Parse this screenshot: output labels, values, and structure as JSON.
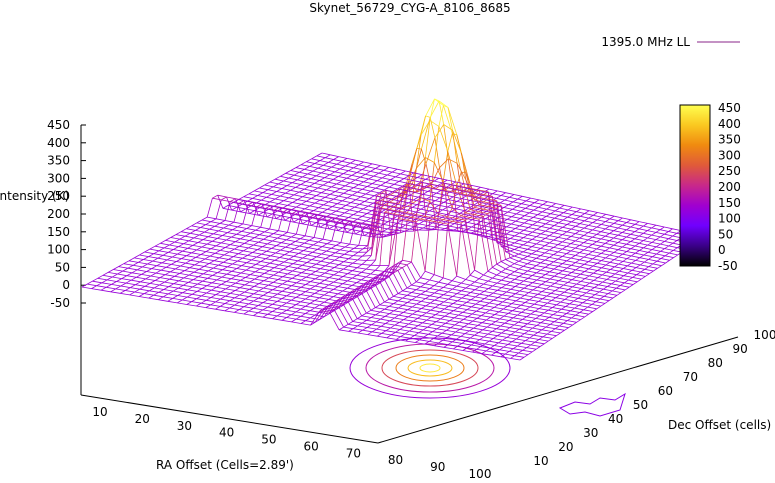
{
  "chart_data": {
    "type": "surface",
    "title": "Skynet_56729_CYG-A_8106_8685",
    "xlabel": "RA Offset (Cells=2.89')",
    "ylabel": "Dec Offset (cells)",
    "zlabel": "Intensity (K)",
    "legend": {
      "label": "1395.0 MHz LL",
      "position": "top-right",
      "color": "#e0a000"
    },
    "x_ticks": [
      "10",
      "20",
      "30",
      "40",
      "50",
      "60",
      "70",
      "80",
      "90",
      "100"
    ],
    "y_ticks": [
      "10",
      "20",
      "30",
      "40",
      "50",
      "60",
      "70",
      "80",
      "90",
      "100"
    ],
    "z_ticks": [
      "450",
      "400",
      "350",
      "300",
      "250",
      "200",
      "150",
      "100",
      "50",
      "0",
      "-50"
    ],
    "zlim": [
      -50,
      450
    ],
    "colorbar": {
      "ticks": [
        "450",
        "400",
        "350",
        "300",
        "250",
        "200",
        "150",
        "100",
        "50",
        "0",
        "-50"
      ],
      "range": [
        -50,
        450
      ],
      "palette": [
        "#000000",
        "#3a0088",
        "#7000ff",
        "#a000d0",
        "#c8288a",
        "#e05a3a",
        "#f08a10",
        "#fac820",
        "#ffff50"
      ]
    },
    "peak": {
      "x": 55,
      "y": 55,
      "z": 450
    },
    "contours": true
  }
}
